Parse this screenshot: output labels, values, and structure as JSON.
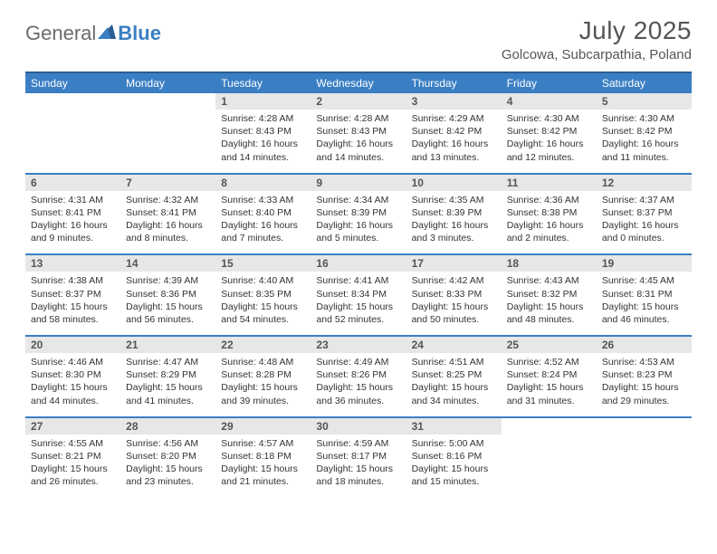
{
  "logo": {
    "general": "General",
    "blue": "Blue"
  },
  "title": "July 2025",
  "location": "Golcowa, Subcarpathia, Poland",
  "colors": {
    "header_bg": "#3a7fc4",
    "header_border": "#2b5f94",
    "daynum_bg": "#e7e7e7",
    "text": "#333333",
    "muted": "#555555"
  },
  "weekdays": [
    "Sunday",
    "Monday",
    "Tuesday",
    "Wednesday",
    "Thursday",
    "Friday",
    "Saturday"
  ],
  "weeks": [
    [
      {
        "n": "",
        "sr": "",
        "ss": "",
        "dl": ""
      },
      {
        "n": "",
        "sr": "",
        "ss": "",
        "dl": ""
      },
      {
        "n": "1",
        "sr": "4:28 AM",
        "ss": "8:43 PM",
        "dl": "16 hours and 14 minutes."
      },
      {
        "n": "2",
        "sr": "4:28 AM",
        "ss": "8:43 PM",
        "dl": "16 hours and 14 minutes."
      },
      {
        "n": "3",
        "sr": "4:29 AM",
        "ss": "8:42 PM",
        "dl": "16 hours and 13 minutes."
      },
      {
        "n": "4",
        "sr": "4:30 AM",
        "ss": "8:42 PM",
        "dl": "16 hours and 12 minutes."
      },
      {
        "n": "5",
        "sr": "4:30 AM",
        "ss": "8:42 PM",
        "dl": "16 hours and 11 minutes."
      }
    ],
    [
      {
        "n": "6",
        "sr": "4:31 AM",
        "ss": "8:41 PM",
        "dl": "16 hours and 9 minutes."
      },
      {
        "n": "7",
        "sr": "4:32 AM",
        "ss": "8:41 PM",
        "dl": "16 hours and 8 minutes."
      },
      {
        "n": "8",
        "sr": "4:33 AM",
        "ss": "8:40 PM",
        "dl": "16 hours and 7 minutes."
      },
      {
        "n": "9",
        "sr": "4:34 AM",
        "ss": "8:39 PM",
        "dl": "16 hours and 5 minutes."
      },
      {
        "n": "10",
        "sr": "4:35 AM",
        "ss": "8:39 PM",
        "dl": "16 hours and 3 minutes."
      },
      {
        "n": "11",
        "sr": "4:36 AM",
        "ss": "8:38 PM",
        "dl": "16 hours and 2 minutes."
      },
      {
        "n": "12",
        "sr": "4:37 AM",
        "ss": "8:37 PM",
        "dl": "16 hours and 0 minutes."
      }
    ],
    [
      {
        "n": "13",
        "sr": "4:38 AM",
        "ss": "8:37 PM",
        "dl": "15 hours and 58 minutes."
      },
      {
        "n": "14",
        "sr": "4:39 AM",
        "ss": "8:36 PM",
        "dl": "15 hours and 56 minutes."
      },
      {
        "n": "15",
        "sr": "4:40 AM",
        "ss": "8:35 PM",
        "dl": "15 hours and 54 minutes."
      },
      {
        "n": "16",
        "sr": "4:41 AM",
        "ss": "8:34 PM",
        "dl": "15 hours and 52 minutes."
      },
      {
        "n": "17",
        "sr": "4:42 AM",
        "ss": "8:33 PM",
        "dl": "15 hours and 50 minutes."
      },
      {
        "n": "18",
        "sr": "4:43 AM",
        "ss": "8:32 PM",
        "dl": "15 hours and 48 minutes."
      },
      {
        "n": "19",
        "sr": "4:45 AM",
        "ss": "8:31 PM",
        "dl": "15 hours and 46 minutes."
      }
    ],
    [
      {
        "n": "20",
        "sr": "4:46 AM",
        "ss": "8:30 PM",
        "dl": "15 hours and 44 minutes."
      },
      {
        "n": "21",
        "sr": "4:47 AM",
        "ss": "8:29 PM",
        "dl": "15 hours and 41 minutes."
      },
      {
        "n": "22",
        "sr": "4:48 AM",
        "ss": "8:28 PM",
        "dl": "15 hours and 39 minutes."
      },
      {
        "n": "23",
        "sr": "4:49 AM",
        "ss": "8:26 PM",
        "dl": "15 hours and 36 minutes."
      },
      {
        "n": "24",
        "sr": "4:51 AM",
        "ss": "8:25 PM",
        "dl": "15 hours and 34 minutes."
      },
      {
        "n": "25",
        "sr": "4:52 AM",
        "ss": "8:24 PM",
        "dl": "15 hours and 31 minutes."
      },
      {
        "n": "26",
        "sr": "4:53 AM",
        "ss": "8:23 PM",
        "dl": "15 hours and 29 minutes."
      }
    ],
    [
      {
        "n": "27",
        "sr": "4:55 AM",
        "ss": "8:21 PM",
        "dl": "15 hours and 26 minutes."
      },
      {
        "n": "28",
        "sr": "4:56 AM",
        "ss": "8:20 PM",
        "dl": "15 hours and 23 minutes."
      },
      {
        "n": "29",
        "sr": "4:57 AM",
        "ss": "8:18 PM",
        "dl": "15 hours and 21 minutes."
      },
      {
        "n": "30",
        "sr": "4:59 AM",
        "ss": "8:17 PM",
        "dl": "15 hours and 18 minutes."
      },
      {
        "n": "31",
        "sr": "5:00 AM",
        "ss": "8:16 PM",
        "dl": "15 hours and 15 minutes."
      },
      {
        "n": "",
        "sr": "",
        "ss": "",
        "dl": ""
      },
      {
        "n": "",
        "sr": "",
        "ss": "",
        "dl": ""
      }
    ]
  ],
  "labels": {
    "sunrise": "Sunrise: ",
    "sunset": "Sunset: ",
    "daylight": "Daylight: "
  }
}
